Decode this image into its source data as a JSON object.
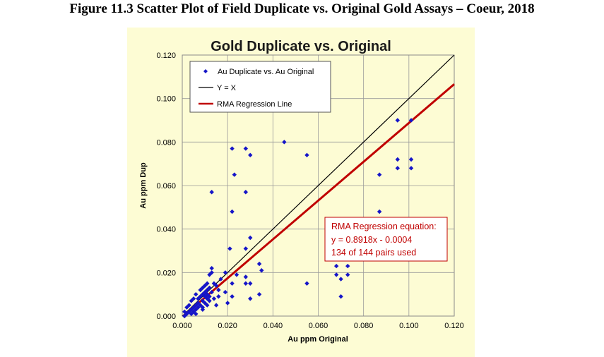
{
  "caption": "Figure 11.3  Scatter Plot of Field Duplicate vs. Original Gold Assays – Coeur, 2018",
  "colors": {
    "panel": "#fdfcd4",
    "points": "#1515c8",
    "yx": "#000000",
    "rma": "#c00000",
    "annotation_border": "#c00000"
  },
  "chart_data": {
    "type": "scatter",
    "title": "Gold Duplicate vs. Original",
    "xlabel": "Au ppm Original",
    "ylabel": "Au ppm Dup",
    "xlim": [
      0,
      0.12
    ],
    "ylim": [
      0,
      0.12
    ],
    "x_ticks": [
      "0.000",
      "0.020",
      "0.040",
      "0.060",
      "0.080",
      "0.100",
      "0.120"
    ],
    "y_ticks": [
      "0.000",
      "0.020",
      "0.040",
      "0.060",
      "0.080",
      "0.100",
      "0.120"
    ],
    "grid": true,
    "legend_position": "top-left",
    "legend": [
      "Au Duplicate vs. Au Original",
      "Y = X",
      "RMA Regression Line"
    ],
    "series": [
      {
        "name": "Au Duplicate vs. Au Original",
        "type": "scatter",
        "points": [
          [
            0.045,
            0.08
          ],
          [
            0.022,
            0.077
          ],
          [
            0.028,
            0.077
          ],
          [
            0.03,
            0.074
          ],
          [
            0.055,
            0.074
          ],
          [
            0.023,
            0.065
          ],
          [
            0.013,
            0.057
          ],
          [
            0.028,
            0.057
          ],
          [
            0.022,
            0.048
          ],
          [
            0.03,
            0.036
          ],
          [
            0.021,
            0.031
          ],
          [
            0.028,
            0.031
          ],
          [
            0.034,
            0.024
          ],
          [
            0.035,
            0.021
          ],
          [
            0.013,
            0.022
          ],
          [
            0.012,
            0.019
          ],
          [
            0.013,
            0.02
          ],
          [
            0.019,
            0.02
          ],
          [
            0.024,
            0.019
          ],
          [
            0.028,
            0.018
          ],
          [
            0.017,
            0.017
          ],
          [
            0.022,
            0.015
          ],
          [
            0.028,
            0.015
          ],
          [
            0.03,
            0.015
          ],
          [
            0.015,
            0.014
          ],
          [
            0.012,
            0.013
          ],
          [
            0.016,
            0.012
          ],
          [
            0.019,
            0.011
          ],
          [
            0.034,
            0.01
          ],
          [
            0.013,
            0.011
          ],
          [
            0.022,
            0.009
          ],
          [
            0.03,
            0.008
          ],
          [
            0.014,
            0.008
          ],
          [
            0.016,
            0.009
          ],
          [
            0.02,
            0.006
          ],
          [
            0.015,
            0.005
          ],
          [
            0.01,
            0.014
          ],
          [
            0.009,
            0.013
          ],
          [
            0.011,
            0.012
          ],
          [
            0.008,
            0.012
          ],
          [
            0.01,
            0.011
          ],
          [
            0.011,
            0.01
          ],
          [
            0.009,
            0.01
          ],
          [
            0.01,
            0.009
          ],
          [
            0.008,
            0.009
          ],
          [
            0.006,
            0.01
          ],
          [
            0.007,
            0.008
          ],
          [
            0.011,
            0.008
          ],
          [
            0.012,
            0.007
          ],
          [
            0.005,
            0.008
          ],
          [
            0.009,
            0.007
          ],
          [
            0.01,
            0.006
          ],
          [
            0.007,
            0.006
          ],
          [
            0.004,
            0.007
          ],
          [
            0.006,
            0.005
          ],
          [
            0.008,
            0.005
          ],
          [
            0.011,
            0.005
          ],
          [
            0.003,
            0.005
          ],
          [
            0.005,
            0.004
          ],
          [
            0.007,
            0.004
          ],
          [
            0.009,
            0.004
          ],
          [
            0.004,
            0.003
          ],
          [
            0.002,
            0.004
          ],
          [
            0.006,
            0.003
          ],
          [
            0.001,
            0.002
          ],
          [
            0.003,
            0.002
          ],
          [
            0.005,
            0.002
          ],
          [
            0.002,
            0.001
          ],
          [
            0.004,
            0.001
          ],
          [
            0.006,
            0.001
          ],
          [
            0.001,
            0.0
          ],
          [
            0.009,
            0.003
          ],
          [
            0.012,
            0.009
          ],
          [
            0.014,
            0.015
          ],
          [
            0.011,
            0.015
          ],
          [
            0.055,
            0.015
          ],
          [
            0.068,
            0.023
          ],
          [
            0.073,
            0.023
          ],
          [
            0.068,
            0.019
          ],
          [
            0.073,
            0.019
          ],
          [
            0.07,
            0.017
          ],
          [
            0.07,
            0.009
          ],
          [
            0.087,
            0.048
          ],
          [
            0.087,
            0.065
          ],
          [
            0.095,
            0.068
          ],
          [
            0.095,
            0.072
          ],
          [
            0.101,
            0.068
          ],
          [
            0.101,
            0.072
          ],
          [
            0.095,
            0.09
          ],
          [
            0.101,
            0.09
          ]
        ]
      },
      {
        "name": "Y = X",
        "type": "line",
        "points": [
          [
            0,
            0
          ],
          [
            0.12,
            0.12
          ]
        ]
      },
      {
        "name": "RMA Regression Line",
        "type": "line",
        "slope": 0.8918,
        "intercept": -0.0004,
        "x_range": [
          0,
          0.12
        ]
      }
    ],
    "annotation": [
      "RMA Regression equation:",
      "y = 0.8918x - 0.0004",
      "134 of 144 pairs used"
    ]
  }
}
